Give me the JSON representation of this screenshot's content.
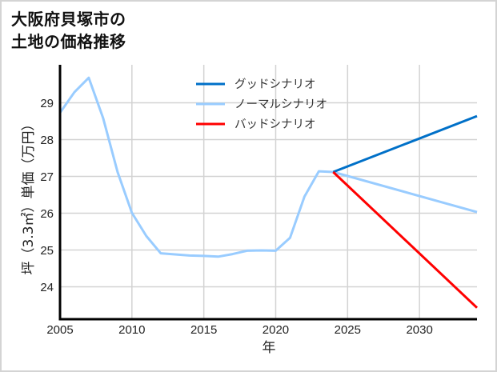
{
  "title": "大阪府貝塚市の\n土地の価格推移",
  "chart_data": {
    "type": "line",
    "title": "大阪府貝塚市の土地の価格推移",
    "xlabel": "年",
    "ylabel": "坪（3.3㎡）単価（万円）",
    "xlim": [
      2005,
      2034
    ],
    "ylim": [
      23.1,
      30.0
    ],
    "xticks": [
      2005,
      2010,
      2015,
      2020,
      2025,
      2030
    ],
    "yticks": [
      24,
      25,
      26,
      27,
      28,
      29
    ],
    "grid": true,
    "legend_position": "upper center",
    "series": [
      {
        "name": "グッドシナリオ",
        "color": "#0070c8",
        "x": [
          2024,
          2034
        ],
        "values": [
          27.12,
          28.64
        ]
      },
      {
        "name": "ノーマルシナリオ",
        "color": "#99ccff",
        "x": [
          2005,
          2006,
          2007,
          2008,
          2009,
          2010,
          2011,
          2012,
          2013,
          2014,
          2015,
          2016,
          2017,
          2018,
          2019,
          2020,
          2021,
          2022,
          2023,
          2024,
          2034
        ],
        "values": [
          28.73,
          29.29,
          29.68,
          28.58,
          27.12,
          26.01,
          25.38,
          24.91,
          24.88,
          24.85,
          24.84,
          24.82,
          24.89,
          24.98,
          24.99,
          24.98,
          25.33,
          26.45,
          27.14,
          27.12,
          26.03
        ]
      },
      {
        "name": "バッドシナリオ",
        "color": "#ff0000",
        "x": [
          2024,
          2034
        ],
        "values": [
          27.12,
          23.43
        ]
      }
    ]
  }
}
